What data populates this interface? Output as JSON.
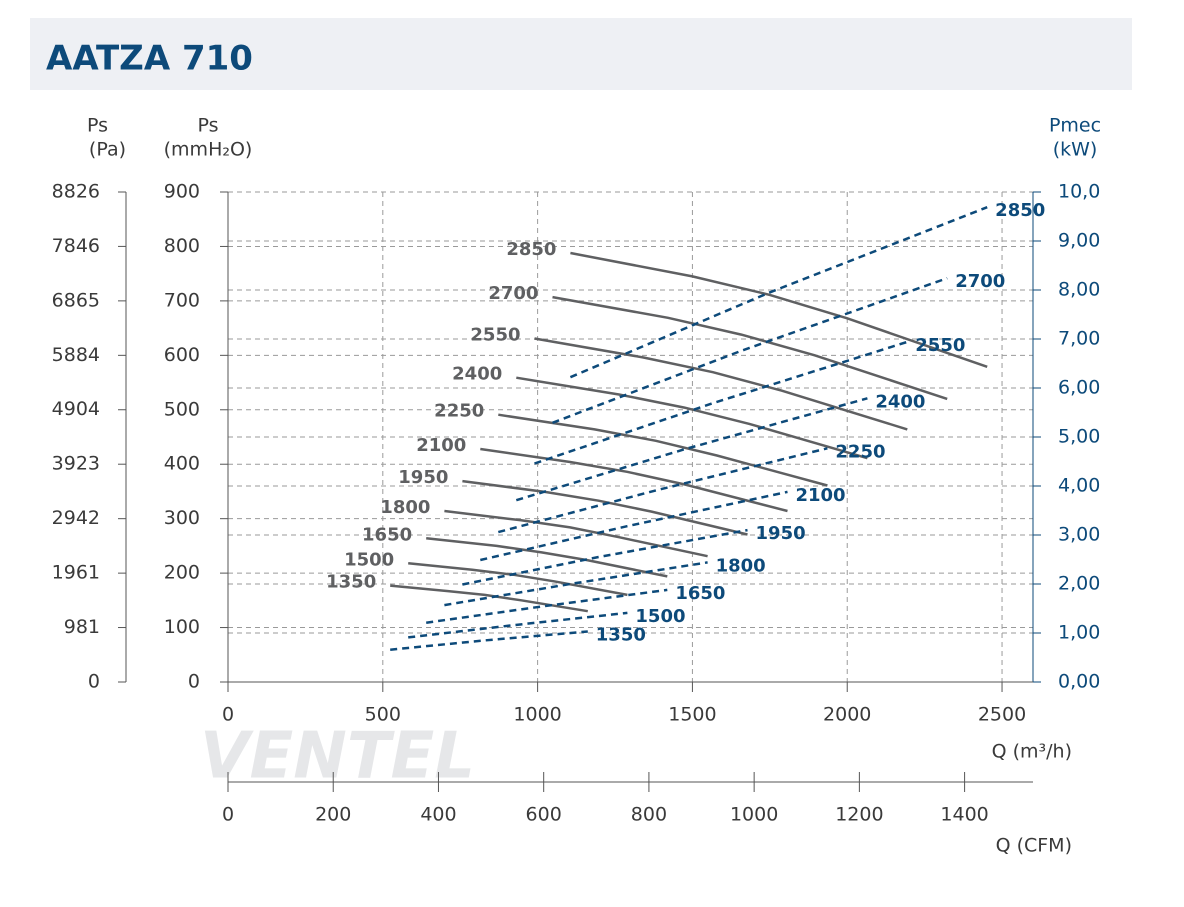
{
  "chart_data": {
    "type": "line",
    "title": "AATZA 710",
    "watermark": "VENTEL",
    "xlabel": "Q (m³/h)",
    "xlim": [
      0,
      2600
    ],
    "xticks": [
      0,
      500,
      1000,
      1500,
      2000,
      2500
    ],
    "ylabel": [
      "Ps",
      "(mmH₂O)"
    ],
    "ylim": [
      0,
      900
    ],
    "yticks": [
      0,
      100,
      200,
      300,
      400,
      500,
      600,
      700,
      800,
      900
    ],
    "y2label": [
      "Pmec",
      "(kW)"
    ],
    "y2lim": [
      0,
      10
    ],
    "y2ticks": [
      {
        "value": 0,
        "label": "0,00"
      },
      {
        "value": 1,
        "label": "1,00"
      },
      {
        "value": 2,
        "label": "2,00"
      },
      {
        "value": 3,
        "label": "3,00"
      },
      {
        "value": 4,
        "label": "4,00"
      },
      {
        "value": 5,
        "label": "5,00"
      },
      {
        "value": 6,
        "label": "6,00"
      },
      {
        "value": 7,
        "label": "7,00"
      },
      {
        "value": 8,
        "label": "8,00"
      },
      {
        "value": 9,
        "label": "9,00"
      },
      {
        "value": 10,
        "label": "10,0"
      }
    ],
    "pa_label": [
      "Ps",
      "(Pa)"
    ],
    "pa_lim": [
      0,
      8826
    ],
    "pa_ticks": [
      0,
      981,
      1961,
      2942,
      3923,
      4904,
      5884,
      6865,
      7846,
      8826
    ],
    "cfm_label": "Q (CFM)",
    "cfm_lim": [
      0,
      1530
    ],
    "cfm_ticks": [
      0,
      200,
      400,
      600,
      800,
      1000,
      1200,
      1400
    ],
    "grid": true,
    "series": [
      {
        "name": "2850",
        "color": "#5f6062",
        "x": [
          1106,
          1500,
          1750,
          2000,
          2452
        ],
        "values": [
          788,
          745,
          711,
          668,
          579
        ]
      },
      {
        "name": "2700",
        "color": "#5f6062",
        "x": [
          1048,
          1421,
          1658,
          1895,
          2323
        ],
        "values": [
          707,
          669,
          638,
          600,
          520
        ]
      },
      {
        "name": "2550",
        "color": "#5f6062",
        "x": [
          990,
          1342,
          1566,
          1789,
          2194
        ],
        "values": [
          631,
          596,
          569,
          535,
          464
        ]
      },
      {
        "name": "2400",
        "color": "#5f6062",
        "x": [
          931,
          1263,
          1474,
          1684,
          2065
        ],
        "values": [
          559,
          528,
          504,
          474,
          411
        ]
      },
      {
        "name": "2250",
        "color": "#5f6062",
        "x": [
          873,
          1184,
          1382,
          1579,
          1936
        ],
        "values": [
          491,
          464,
          443,
          416,
          361
        ]
      },
      {
        "name": "2100",
        "color": "#5f6062",
        "x": [
          815,
          1105,
          1289,
          1474,
          1807
        ],
        "values": [
          428,
          404,
          386,
          363,
          314
        ]
      },
      {
        "name": "1950",
        "color": "#5f6062",
        "x": [
          757,
          1026,
          1197,
          1368,
          1678
        ],
        "values": [
          369,
          349,
          333,
          313,
          271
        ]
      },
      {
        "name": "1800",
        "color": "#5f6062",
        "x": [
          699,
          947,
          1105,
          1263,
          1549
        ],
        "values": [
          314,
          297,
          284,
          266,
          231
        ]
      },
      {
        "name": "1650",
        "color": "#5f6062",
        "x": [
          640,
          868,
          1013,
          1158,
          1419
        ],
        "values": [
          264,
          250,
          238,
          224,
          194
        ]
      },
      {
        "name": "1500",
        "color": "#5f6062",
        "x": [
          582,
          789,
          921,
          1053,
          1290
        ],
        "values": [
          218,
          206,
          197,
          185,
          160
        ]
      },
      {
        "name": "1350",
        "color": "#5f6062",
        "x": [
          524,
          711,
          829,
          947,
          1162
        ],
        "values": [
          177,
          167,
          160,
          150,
          130
        ]
      },
      {
        "name": "2850",
        "color": "#0d4a7a",
        "axis": "y2",
        "dashed": true,
        "x": [
          1106,
          1750,
          2452
        ],
        "values": [
          6.22,
          7.95,
          9.69
        ]
      },
      {
        "name": "2700",
        "color": "#0d4a7a",
        "axis": "y2",
        "dashed": true,
        "x": [
          1048,
          1658,
          2323
        ],
        "values": [
          5.29,
          6.76,
          8.24
        ]
      },
      {
        "name": "2550",
        "color": "#0d4a7a",
        "axis": "y2",
        "dashed": true,
        "x": [
          990,
          1566,
          2194
        ],
        "values": [
          4.46,
          5.69,
          6.94
        ]
      },
      {
        "name": "2400",
        "color": "#0d4a7a",
        "axis": "y2",
        "dashed": true,
        "x": [
          931,
          1474,
          2065
        ],
        "values": [
          3.71,
          4.75,
          5.79
        ]
      },
      {
        "name": "2250",
        "color": "#0d4a7a",
        "axis": "y2",
        "dashed": true,
        "x": [
          873,
          1382,
          1936
        ],
        "values": [
          3.06,
          3.91,
          4.77
        ]
      },
      {
        "name": "2100",
        "color": "#0d4a7a",
        "axis": "y2",
        "dashed": true,
        "x": [
          815,
          1289,
          1807
        ],
        "values": [
          2.49,
          3.18,
          3.88
        ]
      },
      {
        "name": "1950",
        "color": "#0d4a7a",
        "axis": "y2",
        "dashed": true,
        "x": [
          757,
          1197,
          1678
        ],
        "values": [
          1.99,
          2.55,
          3.1
        ]
      },
      {
        "name": "1800",
        "color": "#0d4a7a",
        "axis": "y2",
        "dashed": true,
        "x": [
          699,
          1105,
          1549
        ],
        "values": [
          1.57,
          2.0,
          2.44
        ]
      },
      {
        "name": "1650",
        "color": "#0d4a7a",
        "axis": "y2",
        "dashed": true,
        "x": [
          640,
          1013,
          1419
        ],
        "values": [
          1.21,
          1.54,
          1.88
        ]
      },
      {
        "name": "1500",
        "color": "#0d4a7a",
        "axis": "y2",
        "dashed": true,
        "x": [
          582,
          921,
          1290
        ],
        "values": [
          0.91,
          1.16,
          1.41
        ]
      },
      {
        "name": "1350",
        "color": "#0d4a7a",
        "axis": "y2",
        "dashed": true,
        "x": [
          524,
          829,
          1162
        ],
        "values": [
          0.66,
          0.85,
          1.03
        ]
      }
    ]
  }
}
